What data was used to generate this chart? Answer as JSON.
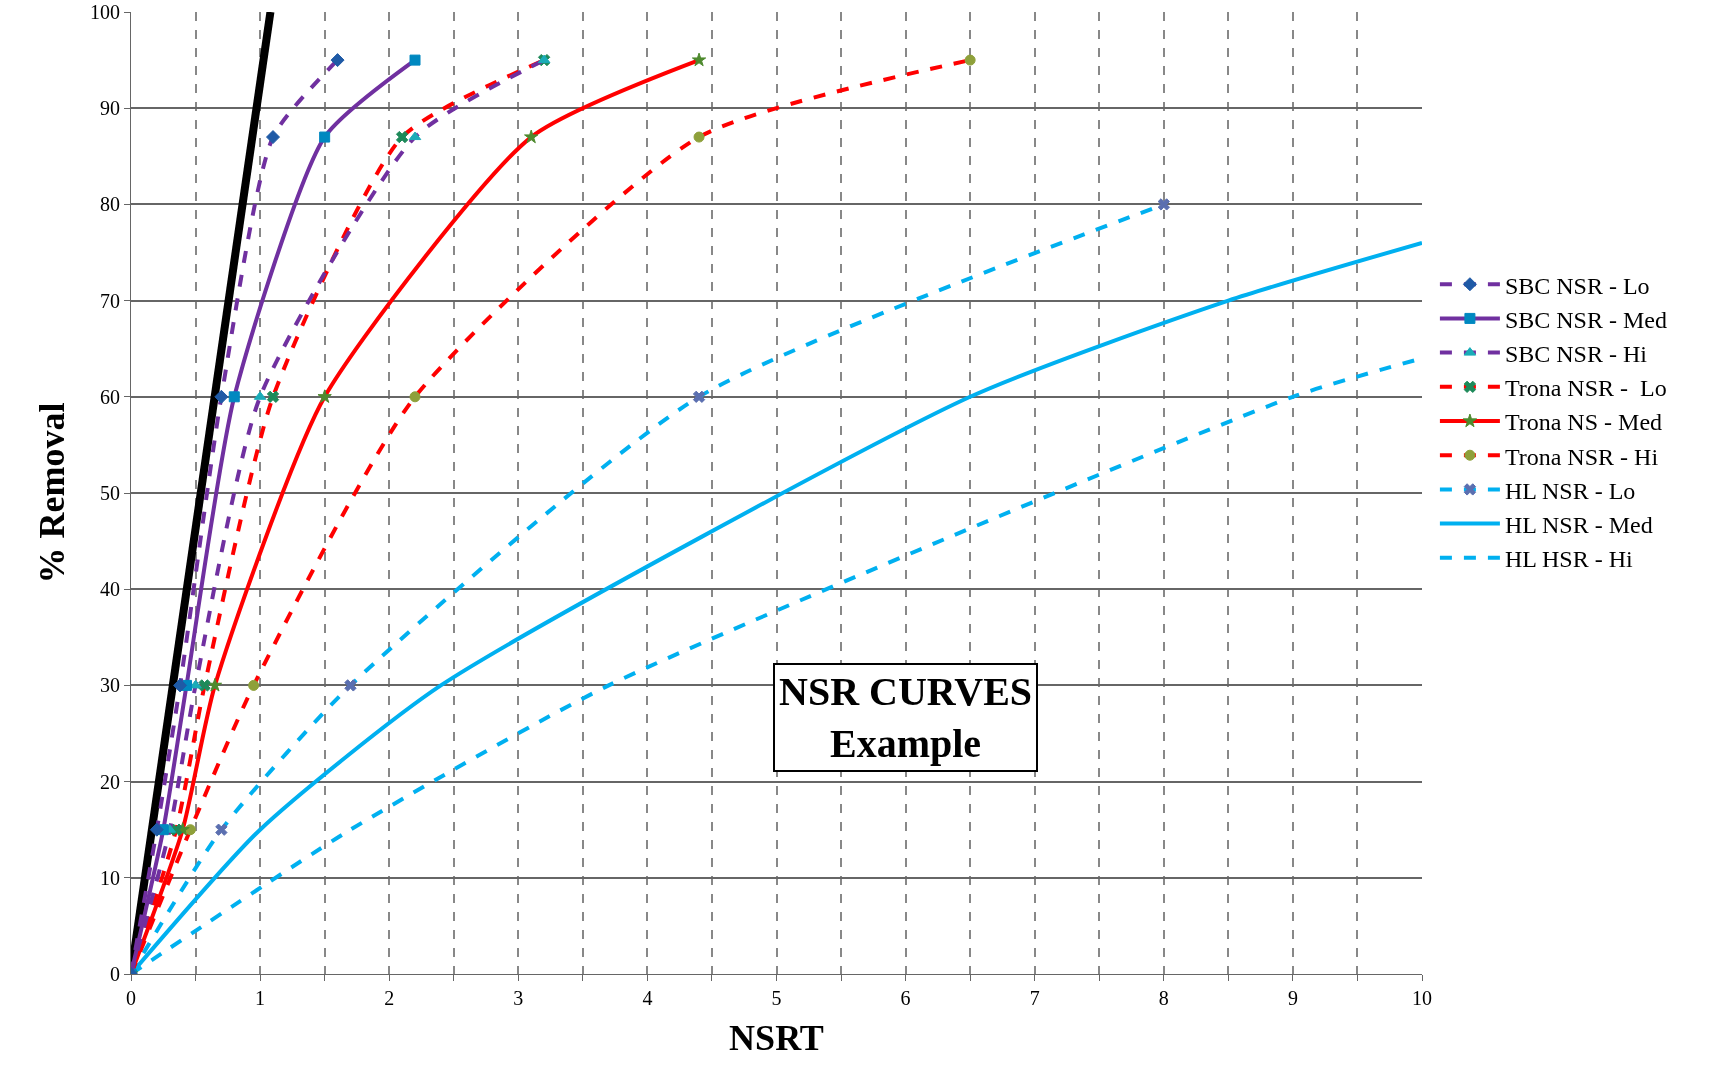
{
  "chart_data": {
    "type": "line",
    "xlabel": "NSRT",
    "ylabel": "% Removal",
    "xlim": [
      0,
      10
    ],
    "ylim": [
      0,
      100
    ],
    "xticks": [
      0,
      {
        "value": 0.5,
        "label": null
      },
      1,
      {
        "value": 1.5,
        "label": null
      },
      2,
      {
        "value": 2.5,
        "label": null
      },
      3,
      {
        "value": 3.5,
        "label": null
      },
      4,
      {
        "value": 4.5,
        "label": null
      },
      5,
      {
        "value": 5.5,
        "label": null
      },
      6,
      {
        "value": 6.5,
        "label": null
      },
      7,
      {
        "value": 7.5,
        "label": null
      },
      8,
      {
        "value": 8.5,
        "label": null
      },
      9,
      {
        "value": 9.5,
        "label": null
      },
      10
    ],
    "yticks": [
      0,
      10,
      20,
      30,
      40,
      50,
      60,
      70,
      80,
      90,
      100
    ],
    "grid": true,
    "legend": "right",
    "annotations": [
      "NSR CURVES\nExample"
    ],
    "series": [
      {
        "name": "SBC NSR - Lo",
        "color": "#7030a0",
        "colors": [
          "#1f5aa6",
          "#1f5aa6",
          "#1f5aa6",
          "#1f5aa6",
          "#1f5aa6",
          "#1f5aa6"
        ],
        "marker": "diamond",
        "line_style": "dashed",
        "x": [
          0,
          0.2,
          0.38,
          0.7,
          1.1,
          1.6
        ],
        "values": [
          0,
          15,
          30,
          60,
          87,
          95
        ]
      },
      {
        "name": "SBC NSR - Med",
        "color": "#7030a0",
        "colors": [
          "#0088c0",
          "#0088c0",
          "#0088c0",
          "#0088c0",
          "#0088c0",
          "#0088c0"
        ],
        "marker": "square",
        "line_style": "solid",
        "x": [
          0,
          0.25,
          0.43,
          0.8,
          1.5,
          2.2
        ],
        "values": [
          0,
          15,
          30,
          60,
          87,
          95
        ]
      },
      {
        "name": "SBC NSR - Hi",
        "color": "#7030a0",
        "colors": [
          "#1aacb8",
          "#1aacb8",
          "#1aacb8",
          "#1aacb8",
          "#1aacb8",
          "#1aacb8"
        ],
        "marker": "triangle",
        "line_style": "dashed",
        "x": [
          0,
          0.3,
          0.5,
          1.0,
          2.2,
          3.2
        ],
        "values": [
          0,
          15,
          30,
          60,
          87,
          95
        ]
      },
      {
        "name": "Trona NSR -  Lo",
        "color": "#ff0000",
        "colors": [
          "#1e8a5a",
          "#1e8a5a",
          "#1e8a5a",
          "#1e8a5a",
          "#1e8a5a",
          "#1e8a5a"
        ],
        "marker": "cross",
        "line_style": "dashed",
        "x": [
          0,
          0.35,
          0.57,
          1.1,
          2.1,
          3.2
        ],
        "values": [
          0,
          15,
          30,
          60,
          87,
          95
        ]
      },
      {
        "name": "Trona NS - Med",
        "color": "#ff0000",
        "colors": [
          "#4e8a2e",
          "#4e8a2e",
          "#4e8a2e",
          "#4e8a2e",
          "#4e8a2e",
          "#4e8a2e"
        ],
        "marker": "star",
        "line_style": "solid",
        "x": [
          0,
          0.4,
          0.65,
          1.5,
          3.1,
          4.4
        ],
        "values": [
          0,
          15,
          30,
          60,
          87,
          95
        ]
      },
      {
        "name": "Trona NSR - Hi",
        "color": "#ff0000",
        "colors": [
          "#8ea03a",
          "#8ea03a",
          "#8ea03a",
          "#8ea03a",
          "#8ea03a",
          "#8ea03a"
        ],
        "marker": "circle",
        "line_style": "dashed",
        "x": [
          0,
          0.46,
          0.95,
          2.2,
          4.4,
          6.5
        ],
        "values": [
          0,
          15,
          30,
          60,
          87,
          95
        ]
      },
      {
        "name": "HL NSR - Lo",
        "color": "#00b0f0",
        "colors": [
          "#5b6fb0",
          "#5b6fb0",
          "#5b6fb0",
          "#5b6fb0",
          "#5b6fb0"
        ],
        "marker": "cross",
        "line_style": "dashed",
        "x": [
          0,
          0.7,
          1.7,
          4.4,
          8
        ],
        "values": [
          0,
          15,
          30,
          60,
          80
        ]
      },
      {
        "name": "HL NSR - Med",
        "color": "#00b0f0",
        "marker": "none",
        "line_style": "solid",
        "x": [
          0,
          1,
          2.4,
          6.5,
          8.5,
          10
        ],
        "values": [
          0,
          15,
          30,
          60,
          70,
          76
        ]
      },
      {
        "name": "HL HSR - Hi",
        "color": "#00b0f0",
        "marker": "none",
        "line_style": "dashed",
        "x": [
          0,
          1.7,
          3.7,
          9,
          10
        ],
        "values": [
          0,
          15,
          30,
          60,
          64
        ]
      },
      {
        "color": "#000000",
        "marker": "none",
        "line_style": "solid",
        "x": [
          0,
          1.08
        ],
        "values": [
          0,
          100
        ]
      }
    ]
  }
}
